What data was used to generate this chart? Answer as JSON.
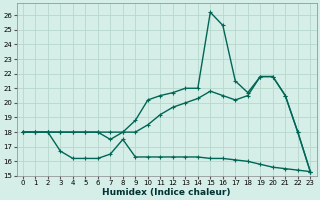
{
  "xlabel": "Humidex (Indice chaleur)",
  "xlim": [
    -0.5,
    23.5
  ],
  "ylim": [
    15,
    26.8
  ],
  "yticks": [
    15,
    16,
    17,
    18,
    19,
    20,
    21,
    22,
    23,
    24,
    25,
    26
  ],
  "xticks": [
    0,
    1,
    2,
    3,
    4,
    5,
    6,
    7,
    8,
    9,
    10,
    11,
    12,
    13,
    14,
    15,
    16,
    17,
    18,
    19,
    20,
    21,
    22,
    23
  ],
  "bg_color": "#d6eee8",
  "grid_color": "#b8d8cc",
  "line_color": "#006655",
  "line1_x": [
    0,
    1,
    2,
    3,
    4,
    5,
    6,
    7,
    8,
    9,
    10,
    11,
    12,
    13,
    14,
    15,
    16,
    17,
    18,
    19,
    20,
    21,
    22,
    23
  ],
  "line1_y": [
    18,
    18,
    18,
    18,
    18,
    18,
    18,
    17.5,
    18,
    18.8,
    20.2,
    20.5,
    20.7,
    21.0,
    21.0,
    26.2,
    25.3,
    21.5,
    20.7,
    21.8,
    21.8,
    20.5,
    18.0,
    15.3
  ],
  "line2_x": [
    0,
    1,
    2,
    3,
    4,
    5,
    6,
    7,
    8,
    9,
    10,
    11,
    12,
    13,
    14,
    15,
    16,
    17,
    18,
    19,
    20,
    21,
    22,
    23
  ],
  "line2_y": [
    18,
    18,
    18,
    18,
    18,
    18,
    18,
    18,
    18,
    18,
    18.5,
    19.2,
    19.7,
    20.0,
    20.3,
    20.8,
    20.5,
    20.2,
    20.5,
    21.8,
    21.8,
    20.5,
    18.0,
    15.3
  ],
  "line3_x": [
    0,
    1,
    2,
    3,
    4,
    5,
    6,
    7,
    8,
    9,
    10,
    11,
    12,
    13,
    14,
    15,
    16,
    17,
    18,
    19,
    20,
    21,
    22,
    23
  ],
  "line3_y": [
    18,
    18,
    18,
    16.7,
    16.2,
    16.2,
    16.2,
    16.5,
    17.5,
    16.3,
    16.3,
    16.3,
    16.3,
    16.3,
    16.3,
    16.2,
    16.2,
    16.1,
    16.0,
    15.8,
    15.6,
    15.5,
    15.4,
    15.3
  ]
}
